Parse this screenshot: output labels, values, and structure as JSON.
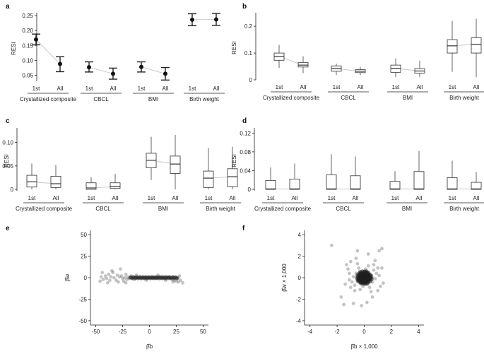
{
  "chart_data": [
    {
      "panel": "a",
      "type": "errorbar",
      "ylabel": "RESI",
      "ylim": [
        0.03,
        0.25
      ],
      "yticks": [
        0.05,
        0.1,
        0.15,
        0.2,
        0.25
      ],
      "group_labels": [
        "Crystallized composite",
        "CBCL",
        "BMI",
        "Birth weight"
      ],
      "sub_labels": [
        "1st",
        "All"
      ],
      "groups": [
        {
          "first": {
            "y": 0.17,
            "lo": 0.152,
            "hi": 0.188
          },
          "all": {
            "y": 0.088,
            "lo": 0.062,
            "hi": 0.112
          }
        },
        {
          "first": {
            "y": 0.077,
            "lo": 0.061,
            "hi": 0.095
          },
          "all": {
            "y": 0.055,
            "lo": 0.037,
            "hi": 0.074
          }
        },
        {
          "first": {
            "y": 0.078,
            "lo": 0.061,
            "hi": 0.095
          },
          "all": {
            "y": 0.055,
            "lo": 0.034,
            "hi": 0.076
          }
        },
        {
          "first": {
            "y": 0.236,
            "lo": 0.216,
            "hi": 0.256
          },
          "all": {
            "y": 0.237,
            "lo": 0.217,
            "hi": 0.257
          }
        }
      ]
    },
    {
      "panel": "b",
      "type": "boxplot",
      "ylabel": "RESI",
      "ylim": [
        0,
        0.24
      ],
      "yticks": [
        0,
        0.1,
        0.2
      ],
      "ytick_labels": [
        "0",
        "0.1",
        "0.2"
      ],
      "group_labels": [
        "Crystallized composite",
        "CBCL",
        "BMI",
        "Birth weight"
      ],
      "sub_labels": [
        "1st",
        "All"
      ],
      "boxes": [
        [
          {
            "wlo": 0.045,
            "q1": 0.073,
            "med": 0.087,
            "q3": 0.1,
            "whi": 0.13
          },
          {
            "wlo": 0.025,
            "q1": 0.048,
            "med": 0.055,
            "q3": 0.065,
            "whi": 0.088
          }
        ],
        [
          {
            "wlo": 0.018,
            "q1": 0.032,
            "med": 0.042,
            "q3": 0.052,
            "whi": 0.06
          },
          {
            "wlo": 0.018,
            "q1": 0.027,
            "med": 0.032,
            "q3": 0.038,
            "whi": 0.048
          }
        ],
        [
          {
            "wlo": 0.01,
            "q1": 0.028,
            "med": 0.043,
            "q3": 0.055,
            "whi": 0.08
          },
          {
            "wlo": 0.01,
            "q1": 0.025,
            "med": 0.033,
            "q3": 0.042,
            "whi": 0.072
          }
        ],
        [
          {
            "wlo": 0.03,
            "q1": 0.1,
            "med": 0.127,
            "q3": 0.15,
            "whi": 0.22
          },
          {
            "wlo": 0.01,
            "q1": 0.1,
            "med": 0.133,
            "q3": 0.157,
            "whi": 0.228
          }
        ]
      ]
    },
    {
      "panel": "c",
      "type": "boxplot",
      "ylabel": "RESI",
      "ylim": [
        -0.003,
        0.125
      ],
      "yticks": [
        0,
        0.05,
        0.1
      ],
      "ytick_labels": [
        "0",
        "0.05",
        "0.10"
      ],
      "group_labels": [
        "Crystallized composite",
        "CBCL",
        "BMI",
        "Birth weight"
      ],
      "sub_labels": [
        "1st",
        "All"
      ],
      "boxes": [
        [
          {
            "wlo": 0.0,
            "q1": 0.005,
            "med": 0.016,
            "q3": 0.03,
            "whi": 0.055
          },
          {
            "wlo": 0.0,
            "q1": 0.004,
            "med": 0.012,
            "q3": 0.028,
            "whi": 0.052
          }
        ],
        [
          {
            "wlo": 0.0,
            "q1": 0.0,
            "med": 0.003,
            "q3": 0.014,
            "whi": 0.026
          },
          {
            "wlo": 0.0,
            "q1": 0.002,
            "med": 0.006,
            "q3": 0.014,
            "whi": 0.033
          }
        ],
        [
          {
            "wlo": 0.02,
            "q1": 0.046,
            "med": 0.062,
            "q3": 0.077,
            "whi": 0.112
          },
          {
            "wlo": 0.0,
            "q1": 0.034,
            "med": 0.054,
            "q3": 0.071,
            "whi": 0.116
          }
        ],
        [
          {
            "wlo": 0.0,
            "q1": 0.004,
            "med": 0.024,
            "q3": 0.039,
            "whi": 0.088
          },
          {
            "wlo": 0.0,
            "q1": 0.006,
            "med": 0.027,
            "q3": 0.044,
            "whi": 0.091
          }
        ]
      ]
    },
    {
      "panel": "d",
      "type": "boxplot",
      "ylabel": "RESI",
      "ylim": [
        -0.003,
        0.125
      ],
      "yticks": [
        0,
        0.04,
        0.08,
        0.12
      ],
      "ytick_labels": [
        "0",
        "0.04",
        "0.08",
        "0.12"
      ],
      "group_labels": [
        "Crystallized composite",
        "CBCL",
        "BMI",
        "Birth weight"
      ],
      "sub_labels": [
        "1st",
        "All"
      ],
      "boxes": [
        [
          {
            "wlo": 0.0,
            "q1": 0.0,
            "med": 0.001,
            "q3": 0.019,
            "whi": 0.047
          },
          {
            "wlo": 0.0,
            "q1": 0.0,
            "med": 0.001,
            "q3": 0.022,
            "whi": 0.055
          }
        ],
        [
          {
            "wlo": 0.0,
            "q1": 0.0,
            "med": 0.001,
            "q3": 0.031,
            "whi": 0.075
          },
          {
            "wlo": 0.0,
            "q1": 0.0,
            "med": 0.001,
            "q3": 0.029,
            "whi": 0.07
          }
        ],
        [
          {
            "wlo": 0.0,
            "q1": 0.0,
            "med": 0.001,
            "q3": 0.017,
            "whi": 0.039
          },
          {
            "wlo": 0.0,
            "q1": 0.0,
            "med": 0.001,
            "q3": 0.038,
            "whi": 0.082
          }
        ],
        [
          {
            "wlo": 0.0,
            "q1": 0.0,
            "med": 0.001,
            "q3": 0.025,
            "whi": 0.061
          },
          {
            "wlo": 0.0,
            "q1": 0.0,
            "med": 0.001,
            "q3": 0.015,
            "whi": 0.037
          }
        ]
      ]
    },
    {
      "panel": "e",
      "type": "scatter",
      "xlabel": "β̂b",
      "ylabel": "β̂w",
      "xlim": [
        -55,
        55
      ],
      "ylim": [
        -55,
        55
      ],
      "xticks": [
        -50,
        -25,
        0,
        25,
        50
      ],
      "yticks": [
        -50,
        -25,
        0,
        25,
        50
      ],
      "points": [
        [
          -46,
          -4
        ],
        [
          -45,
          1
        ],
        [
          -43,
          -2
        ],
        [
          -41,
          2
        ],
        [
          -40,
          -1
        ],
        [
          -38,
          4
        ],
        [
          -37,
          -3
        ],
        [
          -36,
          1
        ],
        [
          -34,
          6
        ],
        [
          -33,
          0
        ],
        [
          -31,
          -3
        ],
        [
          -30,
          3
        ],
        [
          -29,
          -5
        ],
        [
          -28,
          1
        ],
        [
          -26,
          2
        ],
        [
          -25,
          -1
        ],
        [
          -24,
          -4
        ],
        [
          -23,
          0
        ],
        [
          -22,
          4
        ],
        [
          -21,
          -2
        ],
        [
          -20,
          1
        ],
        [
          -19,
          -1
        ],
        [
          -18,
          0
        ],
        [
          -17,
          2
        ],
        [
          -16,
          -1
        ],
        [
          -15,
          1
        ],
        [
          -14,
          -2
        ],
        [
          -13,
          0
        ],
        [
          -12,
          1
        ],
        [
          -11,
          -1
        ],
        [
          -10,
          0
        ],
        [
          -9,
          1
        ],
        [
          -8,
          -1
        ],
        [
          -7,
          0
        ],
        [
          -6,
          1
        ],
        [
          -5,
          -1
        ],
        [
          -4,
          0
        ],
        [
          -3,
          1
        ],
        [
          -2,
          -1
        ],
        [
          -1,
          0
        ],
        [
          0,
          1
        ],
        [
          1,
          -1
        ],
        [
          2,
          0
        ],
        [
          3,
          1
        ],
        [
          4,
          -1
        ],
        [
          5,
          0
        ],
        [
          6,
          1
        ],
        [
          7,
          -1
        ],
        [
          8,
          0
        ],
        [
          9,
          1
        ],
        [
          10,
          -1
        ],
        [
          11,
          0
        ],
        [
          12,
          1
        ],
        [
          13,
          -1
        ],
        [
          14,
          0
        ],
        [
          15,
          1
        ],
        [
          16,
          -1
        ],
        [
          17,
          0
        ],
        [
          18,
          1
        ],
        [
          19,
          -1
        ],
        [
          20,
          0
        ],
        [
          21,
          -2
        ],
        [
          22,
          1
        ],
        [
          23,
          -3
        ],
        [
          24,
          0
        ],
        [
          25,
          -4
        ],
        [
          26,
          -1
        ],
        [
          27,
          -5
        ],
        [
          29,
          -3
        ],
        [
          31,
          -6
        ],
        [
          -27,
          10
        ],
        [
          -35,
          8
        ],
        [
          -44,
          6
        ],
        [
          -39,
          -6
        ],
        [
          -22,
          -6
        ],
        [
          -12,
          3
        ],
        [
          -3,
          -3
        ],
        [
          8,
          3
        ],
        [
          15,
          -3
        ],
        [
          22,
          -5
        ],
        [
          28,
          2
        ]
      ]
    },
    {
      "panel": "f",
      "type": "scatter",
      "xlabel": "β̂b × 1,000",
      "ylabel": "β̂w × 1,000",
      "xlim": [
        -4.4,
        4.4
      ],
      "ylim": [
        -4.4,
        4.4
      ],
      "xticks": [
        -4,
        -2,
        0,
        2,
        4
      ],
      "yticks": [
        -4,
        -2,
        0,
        2,
        4
      ],
      "points": [
        [
          -2.4,
          3.0
        ],
        [
          1.3,
          2.7
        ],
        [
          1.1,
          2.5
        ],
        [
          -0.5,
          2.5
        ],
        [
          0.3,
          2.2
        ],
        [
          -1.3,
          1.2
        ],
        [
          -1.7,
          -1.8
        ],
        [
          -1.5,
          -2.5
        ],
        [
          -0.8,
          -2.4
        ],
        [
          -0.2,
          -2.6
        ],
        [
          0.2,
          -2.3
        ],
        [
          0.6,
          -1.8
        ],
        [
          1.0,
          -1.2
        ],
        [
          1.3,
          0.9
        ],
        [
          -1.0,
          1.5
        ],
        [
          -0.6,
          1.8
        ],
        [
          0.8,
          1.6
        ],
        [
          1.4,
          -0.5
        ],
        [
          -1.4,
          -0.6
        ],
        [
          -1.1,
          0.4
        ],
        [
          0.0,
          0.0
        ],
        [
          0.1,
          0.1
        ],
        [
          -0.1,
          -0.1
        ],
        [
          0.2,
          -0.2
        ],
        [
          -0.2,
          0.2
        ],
        [
          0.3,
          0.3
        ],
        [
          -0.3,
          -0.3
        ],
        [
          0.4,
          0.0
        ],
        [
          -0.4,
          0.0
        ],
        [
          0.0,
          0.4
        ],
        [
          0.0,
          -0.4
        ],
        [
          0.5,
          0.2
        ],
        [
          -0.5,
          -0.2
        ],
        [
          0.2,
          0.5
        ],
        [
          -0.2,
          -0.5
        ],
        [
          0.6,
          -0.4
        ],
        [
          -0.6,
          0.4
        ],
        [
          0.7,
          0.7
        ],
        [
          -0.7,
          -0.7
        ],
        [
          0.8,
          -0.1
        ],
        [
          -0.8,
          0.1
        ],
        [
          0.1,
          0.8
        ],
        [
          -0.1,
          -0.8
        ],
        [
          0.9,
          0.4
        ],
        [
          -0.9,
          -0.4
        ],
        [
          0.4,
          -0.9
        ],
        [
          -0.4,
          0.9
        ],
        [
          1.1,
          0.2
        ],
        [
          -1.1,
          -0.2
        ],
        [
          0.3,
          1.1
        ],
        [
          -0.3,
          -1.1
        ],
        [
          1.2,
          -0.8
        ],
        [
          -1.2,
          0.8
        ],
        [
          0.7,
          1.2
        ],
        [
          -0.7,
          -1.2
        ],
        [
          0.5,
          -1.3
        ],
        [
          -0.5,
          1.3
        ],
        [
          1.0,
          0.9
        ],
        [
          -1.0,
          -0.9
        ],
        [
          0.6,
          0.0
        ],
        [
          -0.6,
          0.0
        ],
        [
          0.0,
          0.6
        ],
        [
          0.0,
          -0.6
        ]
      ]
    }
  ]
}
